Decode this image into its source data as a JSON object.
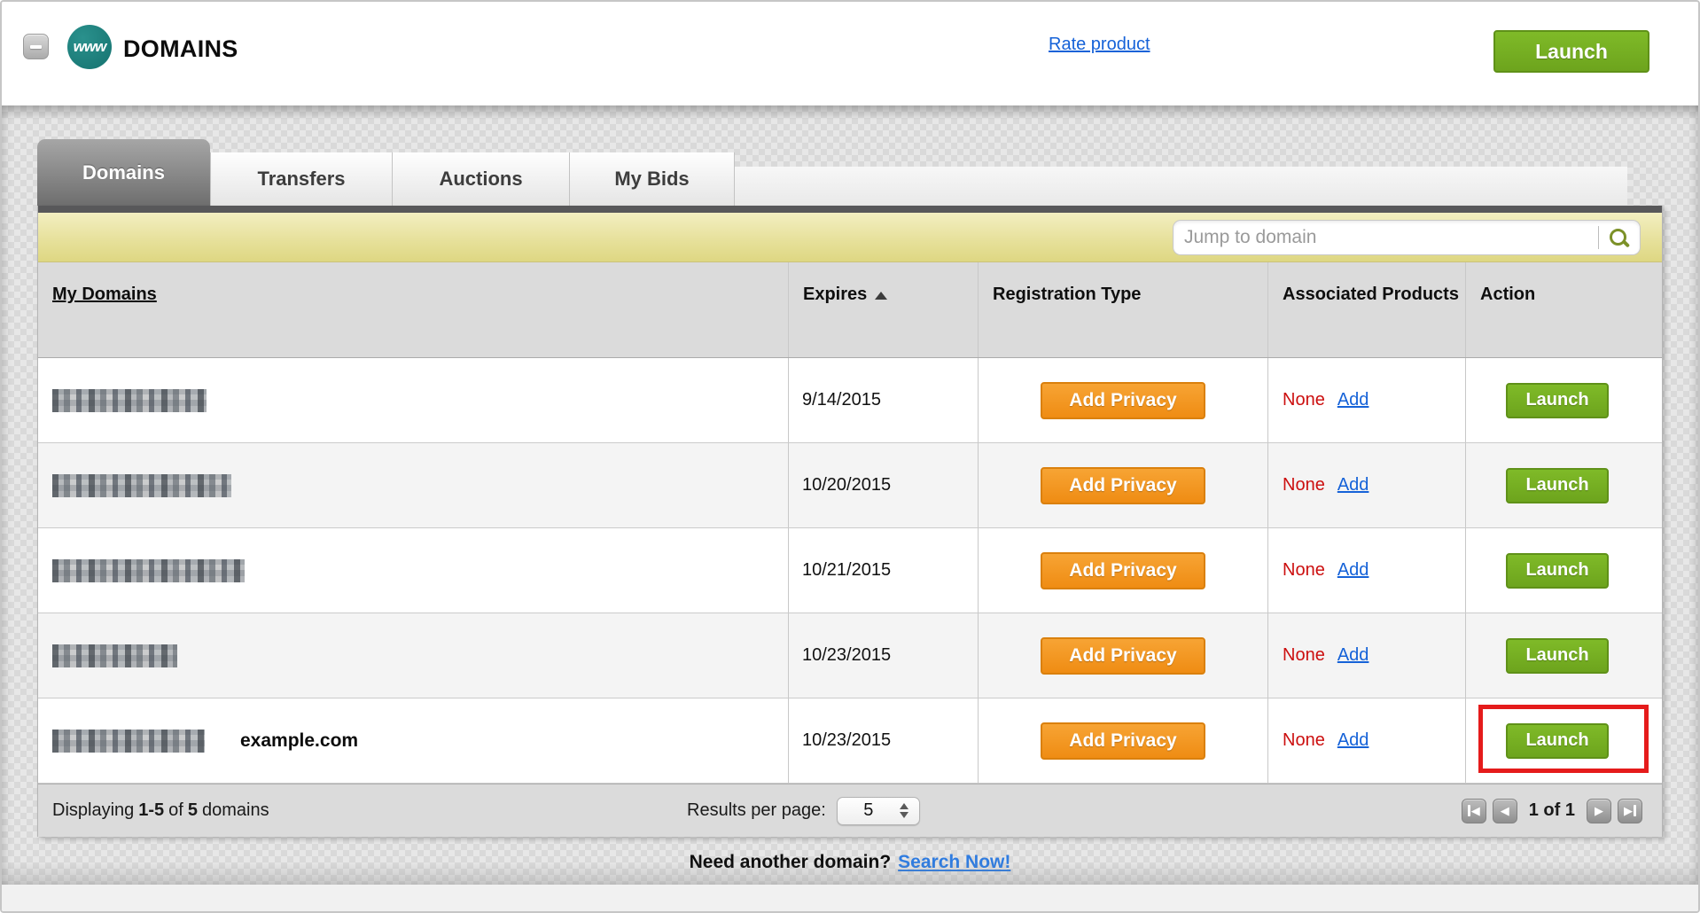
{
  "app": {
    "title": "DOMAINS",
    "logo_text": "www",
    "rate_product_link": "Rate product",
    "launch_button": "Launch"
  },
  "tabs": [
    {
      "label": "Domains",
      "active": true
    },
    {
      "label": "Transfers",
      "active": false
    },
    {
      "label": "Auctions",
      "active": false
    },
    {
      "label": "My Bids",
      "active": false
    }
  ],
  "search": {
    "placeholder": "Jump to domain"
  },
  "table": {
    "columns": {
      "domains": "My Domains",
      "expires": "Expires",
      "registration_type": "Registration Type",
      "associated_products": "Associated Products",
      "action": "Action"
    },
    "sort": {
      "column": "Expires",
      "direction": "ascending"
    },
    "rows": [
      {
        "domain_redacted": true,
        "redacted_width": 174,
        "domain_label": "",
        "expires": "9/14/2015",
        "privacy_button": "Add Privacy",
        "associated_value": "None",
        "associated_link": "Add",
        "action_button": "Launch",
        "highlighted": false
      },
      {
        "domain_redacted": true,
        "redacted_width": 202,
        "domain_label": "",
        "expires": "10/20/2015",
        "privacy_button": "Add Privacy",
        "associated_value": "None",
        "associated_link": "Add",
        "action_button": "Launch",
        "highlighted": false
      },
      {
        "domain_redacted": true,
        "redacted_width": 217,
        "domain_label": "",
        "expires": "10/21/2015",
        "privacy_button": "Add Privacy",
        "associated_value": "None",
        "associated_link": "Add",
        "action_button": "Launch",
        "highlighted": false
      },
      {
        "domain_redacted": true,
        "redacted_width": 141,
        "domain_label": "",
        "expires": "10/23/2015",
        "privacy_button": "Add Privacy",
        "associated_value": "None",
        "associated_link": "Add",
        "action_button": "Launch",
        "highlighted": false
      },
      {
        "domain_redacted": true,
        "redacted_width": 172,
        "domain_label": "example.com",
        "expires": "10/23/2015",
        "privacy_button": "Add Privacy",
        "associated_value": "None",
        "associated_link": "Add",
        "action_button": "Launch",
        "highlighted": true
      }
    ]
  },
  "pagination": {
    "displaying_label": "Displaying",
    "range": "1-5",
    "of_label": "of",
    "total": "5",
    "items_label": "domains",
    "results_per_page_label": "Results per page:",
    "results_per_page_value": "5",
    "page_indicator": "1 of 1"
  },
  "cta": {
    "prompt": "Need another domain?",
    "link": "Search Now!"
  },
  "colors": {
    "accent_green": "#76b121",
    "accent_orange": "#f49a23",
    "highlight_red": "#e51b1b",
    "link_blue": "#1562d8",
    "none_red": "#cc0f0f",
    "toolbar_yellow": "#e7e19c",
    "brand_teal": "#15726f"
  }
}
